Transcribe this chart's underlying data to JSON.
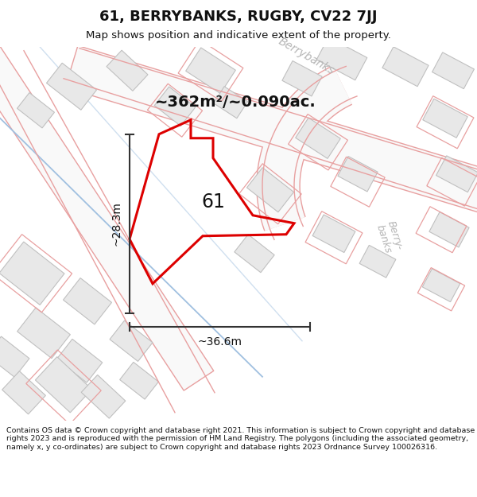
{
  "title": "61, BERRYBANKS, RUGBY, CV22 7JJ",
  "subtitle": "Map shows position and indicative extent of the property.",
  "area_label": "~362m²/~0.090ac.",
  "number_label": "61",
  "width_label": "~36.6m",
  "height_label": "~28.3m",
  "footer": "Contains OS data © Crown copyright and database right 2021. This information is subject to Crown copyright and database rights 2023 and is reproduced with the permission of HM Land Registry. The polygons (including the associated geometry, namely x, y co-ordinates) are subject to Crown copyright and database rights 2023 Ordnance Survey 100026316.",
  "bg_color": "#ffffff",
  "map_bg_color": "#ffffff",
  "title_color": "#111111",
  "footer_color": "#111111",
  "road_label_color": "#aaaaaa",
  "plot_color": "#dd0000",
  "building_fill": "#e8e8e8",
  "building_edge": "#c0c0c0",
  "road_edge_color": "#f5b8b8",
  "road_fill_color": "#ffffff",
  "dim_line_color": "#333333",
  "road_outline_color": "#e8a0a0"
}
